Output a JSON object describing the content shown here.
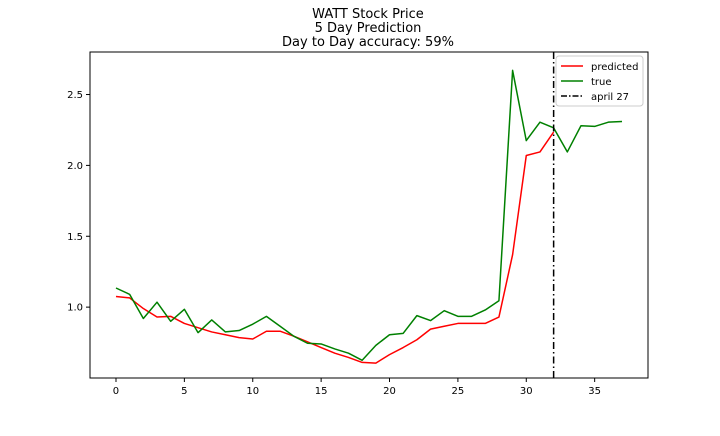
{
  "chart_data": {
    "type": "line",
    "title_lines": [
      "WATT Stock Price",
      "5 Day Prediction",
      "Day to Day accuracy: 59%"
    ],
    "xlabel": "",
    "ylabel": "",
    "xlim": [
      -1.9,
      38.9
    ],
    "ylim": [
      0.5,
      2.8
    ],
    "xticks": [
      0,
      5,
      10,
      15,
      20,
      25,
      30,
      35
    ],
    "yticks": [
      1.0,
      1.5,
      2.0,
      2.5
    ],
    "xtick_labels": [
      "0",
      "5",
      "10",
      "15",
      "20",
      "25",
      "30",
      "35"
    ],
    "ytick_labels": [
      "1.0",
      "1.5",
      "2.0",
      "2.5"
    ],
    "grid": false,
    "legend_position": "top-right",
    "series": [
      {
        "name": "predicted",
        "color": "#ff0000",
        "style": "solid",
        "x": [
          0,
          1,
          2,
          3,
          4,
          5,
          6,
          7,
          8,
          9,
          10,
          11,
          12,
          13,
          14,
          15,
          16,
          17,
          18,
          19,
          20,
          21,
          22,
          23,
          24,
          25,
          26,
          27,
          28,
          29,
          30,
          31,
          32
        ],
        "values": [
          1.075,
          1.065,
          0.99,
          0.93,
          0.935,
          0.885,
          0.855,
          0.825,
          0.805,
          0.785,
          0.775,
          0.83,
          0.83,
          0.795,
          0.755,
          0.715,
          0.675,
          0.645,
          0.61,
          0.605,
          0.665,
          0.715,
          0.77,
          0.845,
          0.865,
          0.885,
          0.885,
          0.885,
          0.93,
          1.37,
          2.07,
          2.095,
          2.235
        ]
      },
      {
        "name": "true",
        "color": "#008000",
        "style": "solid",
        "x": [
          0,
          1,
          2,
          3,
          4,
          5,
          6,
          7,
          8,
          9,
          10,
          11,
          12,
          13,
          14,
          15,
          16,
          17,
          18,
          19,
          20,
          21,
          22,
          23,
          24,
          25,
          26,
          27,
          28,
          29,
          30,
          31,
          32,
          33,
          34,
          35,
          36,
          37
        ],
        "values": [
          1.135,
          1.09,
          0.92,
          1.035,
          0.9,
          0.985,
          0.82,
          0.91,
          0.825,
          0.835,
          0.88,
          0.935,
          0.865,
          0.795,
          0.745,
          0.74,
          0.705,
          0.675,
          0.625,
          0.73,
          0.805,
          0.815,
          0.94,
          0.905,
          0.975,
          0.935,
          0.935,
          0.98,
          1.045,
          2.67,
          2.175,
          2.305,
          2.265,
          2.095,
          2.28,
          2.275,
          2.305,
          2.31
        ]
      }
    ],
    "vline": {
      "name": "april 27",
      "x": 32,
      "color": "#000000",
      "style": "dashdot"
    }
  }
}
